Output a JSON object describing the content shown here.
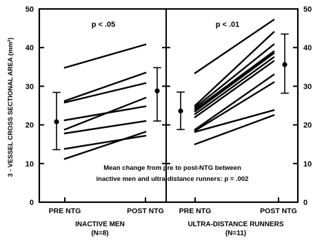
{
  "chart_data": {
    "type": "line",
    "ylabel": "3 - VESSEL CROSS SECTIONAL AREA (mm²)",
    "ylim": [
      0,
      50
    ],
    "yticks": [
      0,
      10,
      20,
      30,
      40,
      50
    ],
    "annotation_lines": [
      "Mean change from pre to post-NTG between",
      "inactive men and ultra-distance runners: p = .002"
    ],
    "panels": [
      {
        "group_label": "INACTIVE MEN",
        "n_label": "(N=8)",
        "p_label": "p < .05",
        "x_categories": [
          "PRE NTG",
          "POST NTG"
        ],
        "subjects": [
          {
            "pre": 34.8,
            "post": 40.8
          },
          {
            "pre": 26.2,
            "post": 33.5
          },
          {
            "pre": 25.8,
            "post": 30.8
          },
          {
            "pre": 21.2,
            "post": 24.8
          },
          {
            "pre": 18.8,
            "post": 27.0
          },
          {
            "pre": 17.8,
            "post": 21.0
          },
          {
            "pre": 13.8,
            "post": 17.2
          },
          {
            "pre": 11.2,
            "post": 18.2
          }
        ],
        "pre_summary": {
          "mean": 20.8,
          "low": 13.6,
          "high": 28.4
        },
        "post_summary": {
          "mean": 28.8,
          "low": 21.0,
          "high": 34.8
        }
      },
      {
        "group_label": "ULTRA-DISTANCE RUNNERS",
        "n_label": "(N=11)",
        "p_label": "p < .01",
        "x_categories": [
          "PRE NTG",
          "POST NTG"
        ],
        "subjects": [
          {
            "pre": 33.4,
            "post": 47.2
          },
          {
            "pre": 25.0,
            "post": 44.0
          },
          {
            "pre": 24.5,
            "post": 40.8
          },
          {
            "pre": 24.0,
            "post": 39.0
          },
          {
            "pre": 23.5,
            "post": 38.5
          },
          {
            "pre": 22.8,
            "post": 37.5
          },
          {
            "pre": 22.0,
            "post": 36.5
          },
          {
            "pre": 18.8,
            "post": 33.0
          },
          {
            "pre": 18.5,
            "post": 31.0
          },
          {
            "pre": 18.2,
            "post": 23.8
          },
          {
            "pre": 15.0,
            "post": 22.5
          }
        ],
        "pre_summary": {
          "mean": 23.6,
          "low": 18.8,
          "high": 28.5
        },
        "post_summary": {
          "mean": 35.6,
          "low": 28.2,
          "high": 43.5
        }
      }
    ]
  }
}
